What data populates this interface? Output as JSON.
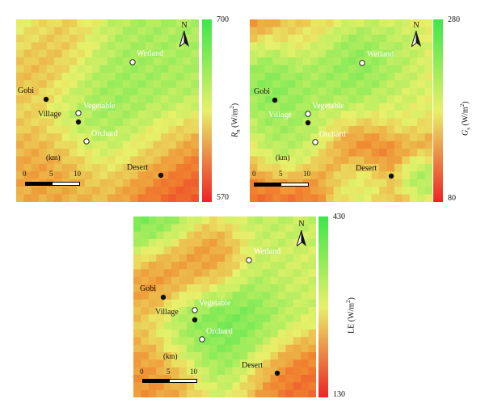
{
  "panels": [
    {
      "id": "rn",
      "colorbar": {
        "max": "700",
        "min": "570",
        "title_main": "R",
        "title_sub": "n",
        "title_unit": " (W/m",
        "title_sup": "2",
        "title_end": ")"
      },
      "north": "N",
      "scale": {
        "unit": "(km)",
        "ticks": [
          "0",
          "5",
          "10"
        ]
      },
      "sites": [
        {
          "name": "Wetland",
          "marker": "open",
          "label_color": "light"
        },
        {
          "name": "Gobi",
          "marker": "filled",
          "label_color": "dark"
        },
        {
          "name": "Vegetable",
          "marker": "open",
          "label_color": "light"
        },
        {
          "name": "Village",
          "marker": "filled",
          "label_color": "dark"
        },
        {
          "name": "Orchard",
          "marker": "open",
          "label_color": "light"
        },
        {
          "name": "Desert",
          "marker": "filled",
          "label_color": "dark"
        }
      ]
    },
    {
      "id": "gs",
      "colorbar": {
        "max": "280",
        "min": "80",
        "title_main": "G",
        "title_sub": "s",
        "title_unit": " (W/m",
        "title_sup": "2",
        "title_end": ")"
      },
      "north": "N",
      "scale": {
        "unit": "(km)",
        "ticks": [
          "0",
          "5",
          "10"
        ]
      },
      "sites": [
        {
          "name": "Wetland",
          "marker": "open",
          "label_color": "light"
        },
        {
          "name": "Gobi",
          "marker": "filled",
          "label_color": "dark"
        },
        {
          "name": "Vegetable",
          "marker": "open",
          "label_color": "light"
        },
        {
          "name": "Village",
          "marker": "filled",
          "label_color": "dark"
        },
        {
          "name": "Orchard",
          "marker": "open",
          "label_color": "light"
        },
        {
          "name": "Desert",
          "marker": "filled",
          "label_color": "dark"
        }
      ]
    },
    {
      "id": "le",
      "colorbar": {
        "max": "430",
        "min": "130",
        "title_main": "LE",
        "title_sub": "",
        "title_unit": " (W/m",
        "title_sup": "2",
        "title_end": ")"
      },
      "north": "N",
      "scale": {
        "unit": "(km)",
        "ticks": [
          "0",
          "5",
          "10"
        ]
      },
      "sites": [
        {
          "name": "Wetland",
          "marker": "open",
          "label_color": "light"
        },
        {
          "name": "Gobi",
          "marker": "filled",
          "label_color": "dark"
        },
        {
          "name": "Vegetable",
          "marker": "open",
          "label_color": "light"
        },
        {
          "name": "Village",
          "marker": "filled",
          "label_color": "dark"
        },
        {
          "name": "Orchard",
          "marker": "open",
          "label_color": "light"
        },
        {
          "name": "Desert",
          "marker": "filled",
          "label_color": "dark"
        }
      ]
    }
  ],
  "colors": {
    "high": "#3ee64a",
    "mid": "#e8f06a",
    "low": "#ee2424"
  }
}
